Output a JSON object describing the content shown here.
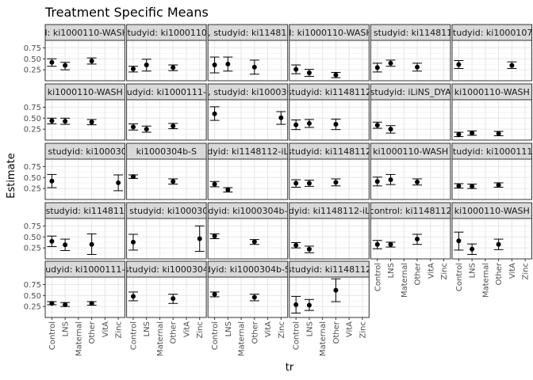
{
  "chart_data": {
    "type": "scatter",
    "title": "Treatment Specific Means",
    "xlabel": "tr",
    "ylabel": "Estimate",
    "categories": [
      "Control",
      "LNS",
      "Maternal",
      "Other",
      "VitA",
      "Zinc"
    ],
    "y_ticks": [
      0.25,
      0.5,
      0.75
    ],
    "ylim": [
      0.0,
      0.92
    ],
    "grid": true,
    "panels": [
      {
        "strip": "d: ki1000110-WASH",
        "points": [
          {
            "x": "Control",
            "est": 0.42,
            "lo": 0.33,
            "hi": 0.5
          },
          {
            "x": "LNS",
            "est": 0.35,
            "lo": 0.25,
            "hi": 0.42
          },
          {
            "x": "Other",
            "est": 0.45,
            "lo": 0.38,
            "hi": 0.52
          }
        ]
      },
      {
        "strip": "studyid: ki1000110-",
        "points": [
          {
            "x": "Control",
            "est": 0.27,
            "lo": 0.2,
            "hi": 0.33
          },
          {
            "x": "LNS",
            "est": 0.36,
            "lo": 0.22,
            "hi": 0.49
          },
          {
            "x": "Other",
            "est": 0.3,
            "lo": 0.23,
            "hi": 0.36
          }
        ]
      },
      {
        "strip": "hs, studyid: ki1148112",
        "points": [
          {
            "x": "Control",
            "est": 0.36,
            "lo": 0.18,
            "hi": 0.54
          },
          {
            "x": "LNS",
            "est": 0.38,
            "lo": 0.22,
            "hi": 0.54
          },
          {
            "x": "Other",
            "est": 0.31,
            "lo": 0.15,
            "hi": 0.47
          }
        ]
      },
      {
        "strip": "d: ki1000110-WASH",
        "points": [
          {
            "x": "Control",
            "est": 0.26,
            "lo": 0.16,
            "hi": 0.36
          },
          {
            "x": "LNS",
            "est": 0.18,
            "lo": 0.1,
            "hi": 0.26
          },
          {
            "x": "Other",
            "est": 0.13,
            "lo": 0.07,
            "hi": 0.19
          }
        ]
      },
      {
        "strip": "s, studyid: ki1148112",
        "points": [
          {
            "x": "Control",
            "est": 0.3,
            "lo": 0.2,
            "hi": 0.4
          },
          {
            "x": "LNS",
            "est": 0.4,
            "lo": 0.33,
            "hi": 0.47
          },
          {
            "x": "Other",
            "est": 0.31,
            "lo": 0.22,
            "hi": 0.4
          }
        ]
      },
      {
        "strip": "studyid: ki1000107-",
        "points": [
          {
            "x": "Control",
            "est": 0.37,
            "lo": 0.28,
            "hi": 0.46
          },
          {
            "x": "VitA",
            "est": 0.35,
            "lo": 0.28,
            "hi": 0.43
          }
        ]
      },
      {
        "strip": "ki1000110-WASH",
        "points": [
          {
            "x": "Control",
            "est": 0.44,
            "lo": 0.37,
            "hi": 0.5
          },
          {
            "x": "LNS",
            "est": 0.43,
            "lo": 0.36,
            "hi": 0.5
          },
          {
            "x": "Other",
            "est": 0.41,
            "lo": 0.35,
            "hi": 0.47
          }
        ]
      },
      {
        "strip": "udyid: ki1000111-",
        "points": [
          {
            "x": "Control",
            "est": 0.3,
            "lo": 0.23,
            "hi": 0.37
          },
          {
            "x": "LNS",
            "est": 0.25,
            "lo": 0.18,
            "hi": 0.32
          },
          {
            "x": "Other",
            "est": 0.32,
            "lo": 0.26,
            "hi": 0.38
          }
        ]
      },
      {
        "strip": "hs, studyid: ki1000304",
        "points": [
          {
            "x": "Control",
            "est": 0.6,
            "lo": 0.45,
            "hi": 0.76
          },
          {
            "x": "Zinc",
            "est": 0.51,
            "lo": 0.36,
            "hi": 0.65
          }
        ]
      },
      {
        "strip": "studyid: ki1148112",
        "points": [
          {
            "x": "Control",
            "est": 0.35,
            "lo": 0.24,
            "hi": 0.46
          },
          {
            "x": "LNS",
            "est": 0.38,
            "lo": 0.29,
            "hi": 0.47
          },
          {
            "x": "Other",
            "est": 0.36,
            "lo": 0.24,
            "hi": 0.48
          }
        ]
      },
      {
        "strip": "studyid: iLiNS_DYA",
        "points": [
          {
            "x": "Control",
            "est": 0.34,
            "lo": 0.27,
            "hi": 0.41
          },
          {
            "x": "LNS",
            "est": 0.25,
            "lo": 0.16,
            "hi": 0.33
          }
        ]
      },
      {
        "strip": "ki1000110-WASH",
        "points": [
          {
            "x": "Control",
            "est": 0.13,
            "lo": 0.08,
            "hi": 0.18
          },
          {
            "x": "LNS",
            "est": 0.16,
            "lo": 0.11,
            "hi": 0.21
          },
          {
            "x": "Other",
            "est": 0.15,
            "lo": 0.1,
            "hi": 0.2
          }
        ]
      },
      {
        "strip": "s, studyid: ki1000304",
        "points": [
          {
            "x": "Control",
            "est": 0.42,
            "lo": 0.27,
            "hi": 0.57
          },
          {
            "x": "Zinc",
            "est": 0.38,
            "lo": 0.2,
            "hi": 0.56
          }
        ]
      },
      {
        "strip": "ki1000304b-S",
        "points": [
          {
            "x": "Control",
            "est": 0.52,
            "lo": 0.48,
            "hi": 0.56
          },
          {
            "x": "Other",
            "est": 0.41,
            "lo": 0.35,
            "hi": 0.47
          }
        ]
      },
      {
        "strip": "dyid: ki1148112-iL",
        "points": [
          {
            "x": "Control",
            "est": 0.35,
            "lo": 0.29,
            "hi": 0.41
          },
          {
            "x": "LNS",
            "est": 0.22,
            "lo": 0.17,
            "hi": 0.27
          }
        ]
      },
      {
        "strip": "studyid: ki1148112",
        "points": [
          {
            "x": "Control",
            "est": 0.37,
            "lo": 0.28,
            "hi": 0.45
          },
          {
            "x": "LNS",
            "est": 0.37,
            "lo": 0.3,
            "hi": 0.44
          },
          {
            "x": "Other",
            "est": 0.39,
            "lo": 0.31,
            "hi": 0.47
          }
        ]
      },
      {
        "strip": "ki1000110-WASH",
        "points": [
          {
            "x": "Control",
            "est": 0.41,
            "lo": 0.31,
            "hi": 0.51
          },
          {
            "x": "LNS",
            "est": 0.45,
            "lo": 0.34,
            "hi": 0.57
          },
          {
            "x": "Other",
            "est": 0.4,
            "lo": 0.33,
            "hi": 0.47
          }
        ]
      },
      {
        "strip": "studyid: ki1000111-",
        "points": [
          {
            "x": "Control",
            "est": 0.31,
            "lo": 0.26,
            "hi": 0.36
          },
          {
            "x": "LNS",
            "est": 0.3,
            "lo": 0.25,
            "hi": 0.35
          },
          {
            "x": "Other",
            "est": 0.33,
            "lo": 0.28,
            "hi": 0.38
          }
        ]
      },
      {
        "strip": ", studyid: ki1148112",
        "points": [
          {
            "x": "Control",
            "est": 0.4,
            "lo": 0.28,
            "hi": 0.52
          },
          {
            "x": "LNS",
            "est": 0.32,
            "lo": 0.19,
            "hi": 0.45
          },
          {
            "x": "Other",
            "est": 0.33,
            "lo": 0.1,
            "hi": 0.57
          }
        ]
      },
      {
        "strip": "s, studyid: ki1000304",
        "points": [
          {
            "x": "Control",
            "est": 0.38,
            "lo": 0.2,
            "hi": 0.56
          },
          {
            "x": "Zinc",
            "est": 0.46,
            "lo": 0.17,
            "hi": 0.75
          }
        ]
      },
      {
        "strip": "dyid: ki1000304b-",
        "points": [
          {
            "x": "Control",
            "est": 0.52,
            "lo": 0.46,
            "hi": 0.57
          },
          {
            "x": "Other",
            "est": 0.39,
            "lo": 0.33,
            "hi": 0.44
          }
        ]
      },
      {
        "strip": "dyid: ki1148112-iL",
        "points": [
          {
            "x": "Control",
            "est": 0.31,
            "lo": 0.25,
            "hi": 0.37
          },
          {
            "x": "LNS",
            "est": 0.22,
            "lo": 0.14,
            "hi": 0.29
          }
        ]
      },
      {
        "strip": "control: ki1148112",
        "points": [
          {
            "x": "Control",
            "est": 0.33,
            "lo": 0.23,
            "hi": 0.42
          },
          {
            "x": "LNS",
            "est": 0.33,
            "lo": 0.27,
            "hi": 0.38
          },
          {
            "x": "Other",
            "est": 0.45,
            "lo": 0.33,
            "hi": 0.56
          }
        ]
      },
      {
        "strip": "ki1000110-WASH",
        "points": [
          {
            "x": "Control",
            "est": 0.41,
            "lo": 0.2,
            "hi": 0.61
          },
          {
            "x": "LNS",
            "est": 0.22,
            "lo": 0.1,
            "hi": 0.34
          },
          {
            "x": "Other",
            "est": 0.33,
            "lo": 0.21,
            "hi": 0.45
          }
        ]
      },
      {
        "strip": "udyid: ki1000111-",
        "points": [
          {
            "x": "Control",
            "est": 0.32,
            "lo": 0.29,
            "hi": 0.36
          },
          {
            "x": "LNS",
            "est": 0.29,
            "lo": 0.25,
            "hi": 0.34
          },
          {
            "x": "Other",
            "est": 0.32,
            "lo": 0.28,
            "hi": 0.36
          }
        ]
      },
      {
        "strip": "studyid: ki1000304",
        "points": [
          {
            "x": "Control",
            "est": 0.48,
            "lo": 0.38,
            "hi": 0.58
          },
          {
            "x": "Other",
            "est": 0.43,
            "lo": 0.32,
            "hi": 0.53
          }
        ]
      },
      {
        "strip": "dyid: ki1000304b-S",
        "points": [
          {
            "x": "Control",
            "est": 0.53,
            "lo": 0.47,
            "hi": 0.58
          },
          {
            "x": "Other",
            "est": 0.46,
            "lo": 0.38,
            "hi": 0.53
          }
        ]
      },
      {
        "strip": "studyid: ki1148112",
        "points": [
          {
            "x": "Control",
            "est": 0.29,
            "lo": 0.1,
            "hi": 0.48
          },
          {
            "x": "LNS",
            "est": 0.28,
            "lo": 0.16,
            "hi": 0.41
          },
          {
            "x": "Other",
            "est": 0.62,
            "lo": 0.36,
            "hi": 0.88
          }
        ]
      }
    ]
  }
}
